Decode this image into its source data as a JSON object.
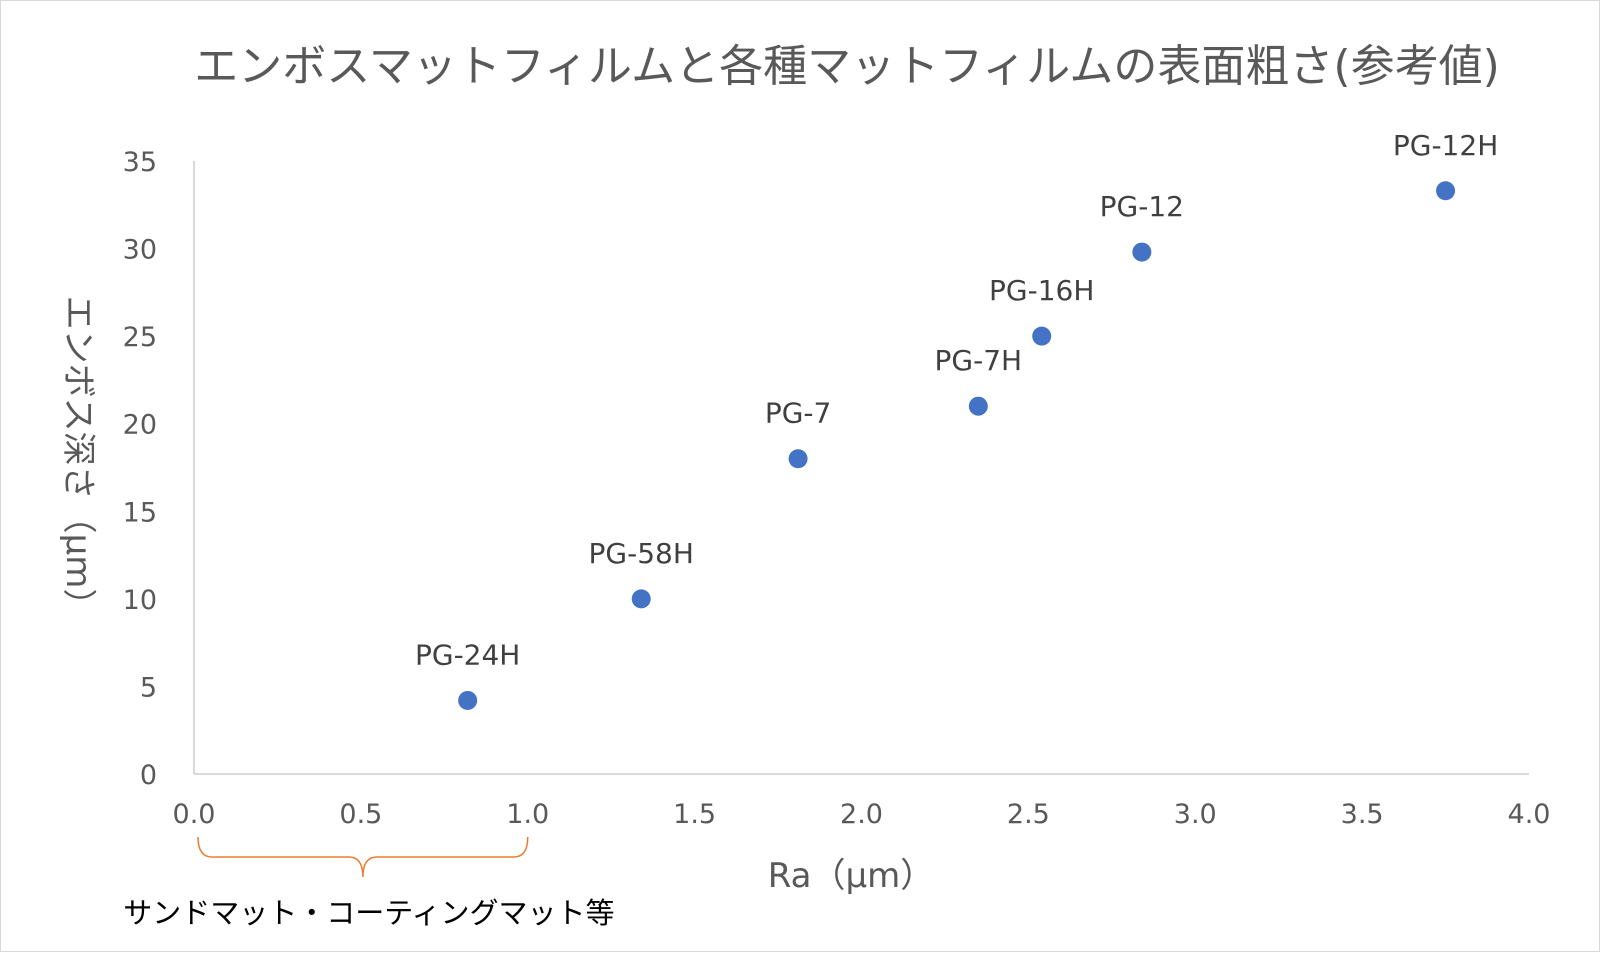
{
  "chart_data": {
    "type": "scatter",
    "title": "エンボスマットフィルムと各種マットフィルムの表面粗さ(参考値)",
    "xlabel": "Ra（µm）",
    "ylabel": "エンボス深さ（µm）",
    "xlim": [
      0,
      4
    ],
    "ylim": [
      0,
      35
    ],
    "x_ticks": [
      "0.0",
      "0.5",
      "1.0",
      "1.5",
      "2.0",
      "2.5",
      "3.0",
      "3.5",
      "4.0"
    ],
    "y_ticks": [
      "0",
      "5",
      "10",
      "15",
      "20",
      "25",
      "30",
      "35"
    ],
    "grid": false,
    "marker_color": "#4472c4",
    "points": [
      {
        "label": "PG-24H",
        "x": 0.82,
        "y": 4.2
      },
      {
        "label": "PG-58H",
        "x": 1.34,
        "y": 10.0
      },
      {
        "label": "PG-7",
        "x": 1.81,
        "y": 18.0
      },
      {
        "label": "PG-7H",
        "x": 2.35,
        "y": 21.0
      },
      {
        "label": "PG-16H",
        "x": 2.54,
        "y": 25.0
      },
      {
        "label": "PG-12",
        "x": 2.84,
        "y": 29.8
      },
      {
        "label": "PG-12H",
        "x": 3.75,
        "y": 33.3
      }
    ],
    "annotation": {
      "text": "サンドマット・コーティングマット等",
      "x_range": [
        0.0,
        1.0
      ],
      "color": "#ed7d31"
    }
  }
}
